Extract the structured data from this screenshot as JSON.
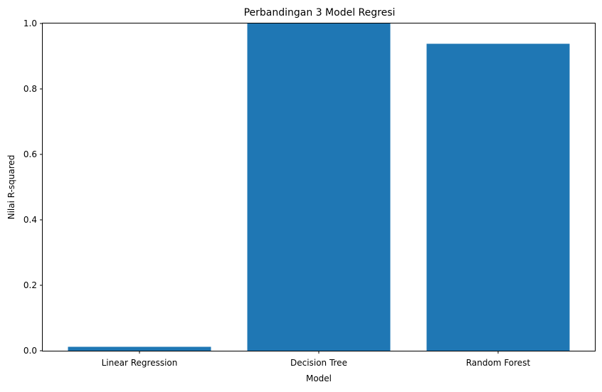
{
  "chart_data": {
    "type": "bar",
    "title": "Perbandingan 3 Model Regresi",
    "xlabel": "Model",
    "ylabel": "Nilai R-squared",
    "categories": [
      "Linear Regression",
      "Decision Tree",
      "Random Forest"
    ],
    "values": [
      0.012,
      1.0,
      0.938
    ],
    "ylim": [
      0,
      1.0
    ],
    "yticks": [
      "0.0",
      "0.2",
      "0.4",
      "0.6",
      "0.8",
      "1.0"
    ],
    "grid": false,
    "legend": "none",
    "bar_color": "#1f77b4"
  }
}
